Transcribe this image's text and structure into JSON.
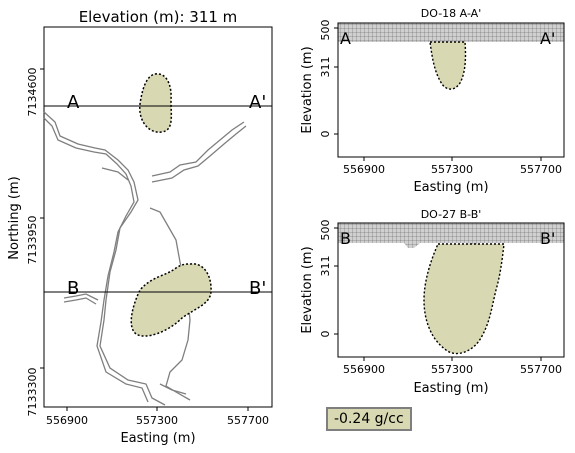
{
  "chart_data": [
    {
      "type": "map",
      "title": "Elevation (m):   311 m",
      "xlabel": "Easting (m)",
      "ylabel": "Northing (m)",
      "xticks": [
        "556900",
        "557300",
        "557700"
      ],
      "yticks": [
        "7133300",
        "7133950",
        "7134600"
      ],
      "sections": [
        {
          "start": "A",
          "end": "A'"
        },
        {
          "start": "B",
          "end": "B'"
        }
      ]
    },
    {
      "type": "area",
      "title": "DO-18 A-A'",
      "xlabel": "Easting (m)",
      "ylabel": "Elevation (m)",
      "xticks": [
        "556900",
        "557300",
        "557700"
      ],
      "yticks": [
        "0",
        "311",
        "500"
      ],
      "end_labels": [
        "A",
        "A'"
      ]
    },
    {
      "type": "area",
      "title": "DO-27 B-B'",
      "xlabel": "Easting (m)",
      "ylabel": "Elevation (m)",
      "xticks": [
        "556900",
        "557300",
        "557700"
      ],
      "yticks": [
        "0",
        "311",
        "500"
      ],
      "end_labels": [
        "B",
        "B'"
      ]
    }
  ],
  "density_label": "-0.24 g/cc",
  "colors": {
    "body_fill": "#d8d8b3",
    "drainage": "#7f7f7f",
    "topo_fill": "#bdbdbd"
  }
}
